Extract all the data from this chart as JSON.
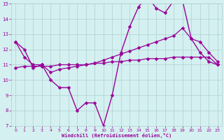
{
  "xlabel": "Windchill (Refroidissement éolien,°C)",
  "x": [
    0,
    1,
    2,
    3,
    4,
    5,
    6,
    7,
    8,
    9,
    10,
    11,
    12,
    13,
    14,
    15,
    16,
    17,
    18,
    19,
    20,
    21,
    22,
    23
  ],
  "y_main": [
    12.5,
    12.0,
    10.8,
    11.0,
    10.0,
    9.5,
    9.5,
    8.0,
    8.5,
    8.5,
    7.0,
    9.0,
    11.8,
    13.5,
    14.8,
    15.5,
    14.7,
    14.4,
    15.2,
    15.2,
    12.7,
    11.8,
    11.2,
    11.0
  ],
  "y_upper": [
    12.5,
    11.5,
    11.0,
    11.0,
    10.5,
    10.7,
    10.8,
    10.9,
    11.0,
    11.1,
    11.3,
    11.5,
    11.7,
    11.9,
    12.1,
    12.3,
    12.5,
    12.7,
    12.9,
    13.4,
    12.7,
    12.5,
    11.8,
    11.2
  ],
  "y_lower": [
    10.8,
    10.9,
    10.9,
    10.9,
    10.9,
    11.0,
    11.0,
    11.0,
    11.0,
    11.1,
    11.1,
    11.2,
    11.2,
    11.3,
    11.3,
    11.4,
    11.4,
    11.4,
    11.5,
    11.5,
    11.5,
    11.5,
    11.5,
    11.0
  ],
  "line_color": "#990099",
  "marker": "D",
  "marker_size": 2.5,
  "bg_color": "#d4f0f0",
  "grid_color": "#b0d0d0",
  "ylim": [
    7,
    15
  ],
  "xlim": [
    -0.5,
    23.5
  ],
  "yticks": [
    7,
    8,
    9,
    10,
    11,
    12,
    13,
    14,
    15
  ],
  "xticks": [
    0,
    1,
    2,
    3,
    4,
    5,
    6,
    7,
    8,
    9,
    10,
    11,
    12,
    13,
    14,
    15,
    16,
    17,
    18,
    19,
    20,
    21,
    22,
    23
  ]
}
